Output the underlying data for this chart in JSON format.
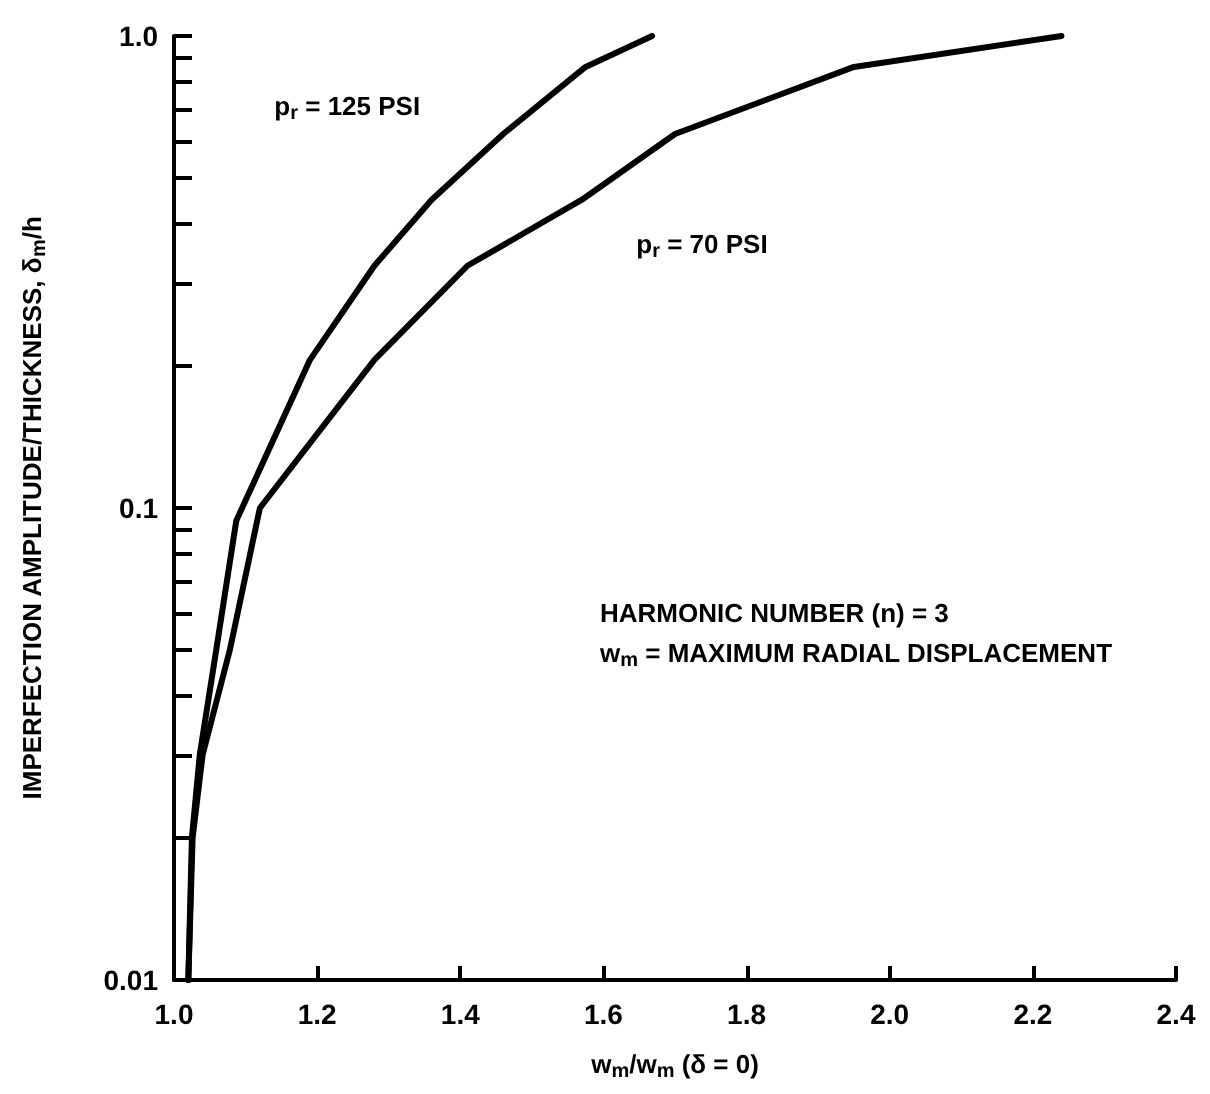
{
  "chart_data": {
    "type": "line",
    "xlabel": "w$_{m}$/w$_{m}$ (δ = 0)",
    "ylabel": "IMPERFECTION AMPLITUDE/THICKNESS, δ$_{m}$/h",
    "log": "y",
    "grid": false,
    "marker": "none",
    "line_style": "solid",
    "xlim": [
      1.0,
      2.4
    ],
    "xticks": [
      {
        "value": 1.0,
        "label": "1.0"
      },
      1.2,
      1.4,
      1.6,
      1.8,
      {
        "value": 2.0,
        "label": "2.0"
      },
      2.2,
      2.4
    ],
    "ylim": [
      0.01,
      1.0
    ],
    "yticks": [
      {
        "value": 0.01,
        "label": "0.01"
      },
      {
        "value": 0.1,
        "label": "0.1"
      },
      {
        "value": 1.0,
        "label": "1.0"
      }
    ],
    "series": [
      {
        "name": "p$_{r}$ = 125 PSI",
        "color": "#000000",
        "x": [
          1.02,
          1.025,
          1.036,
          1.059,
          1.087,
          1.19,
          1.28,
          1.36,
          1.46,
          1.575,
          1.668
        ],
        "values": [
          0.01,
          0.02,
          0.03,
          0.05,
          0.094,
          0.206,
          0.326,
          0.45,
          0.62,
          0.86,
          1.0
        ]
      },
      {
        "name": "p$_{r}$ = 70 PSI",
        "color": "#000000",
        "x": [
          1.02,
          1.026,
          1.04,
          1.078,
          1.12,
          1.28,
          1.41,
          1.57,
          1.7,
          1.95,
          2.24
        ],
        "values": [
          0.01,
          0.02,
          0.03,
          0.05,
          0.1,
          0.206,
          0.326,
          0.45,
          0.62,
          0.86,
          1.0
        ]
      }
    ],
    "annotations": [
      "HARMONIC NUMBER (n) = 3",
      "w$_{m}$ = MAXIMUM RADIAL DISPLACEMENT"
    ]
  }
}
